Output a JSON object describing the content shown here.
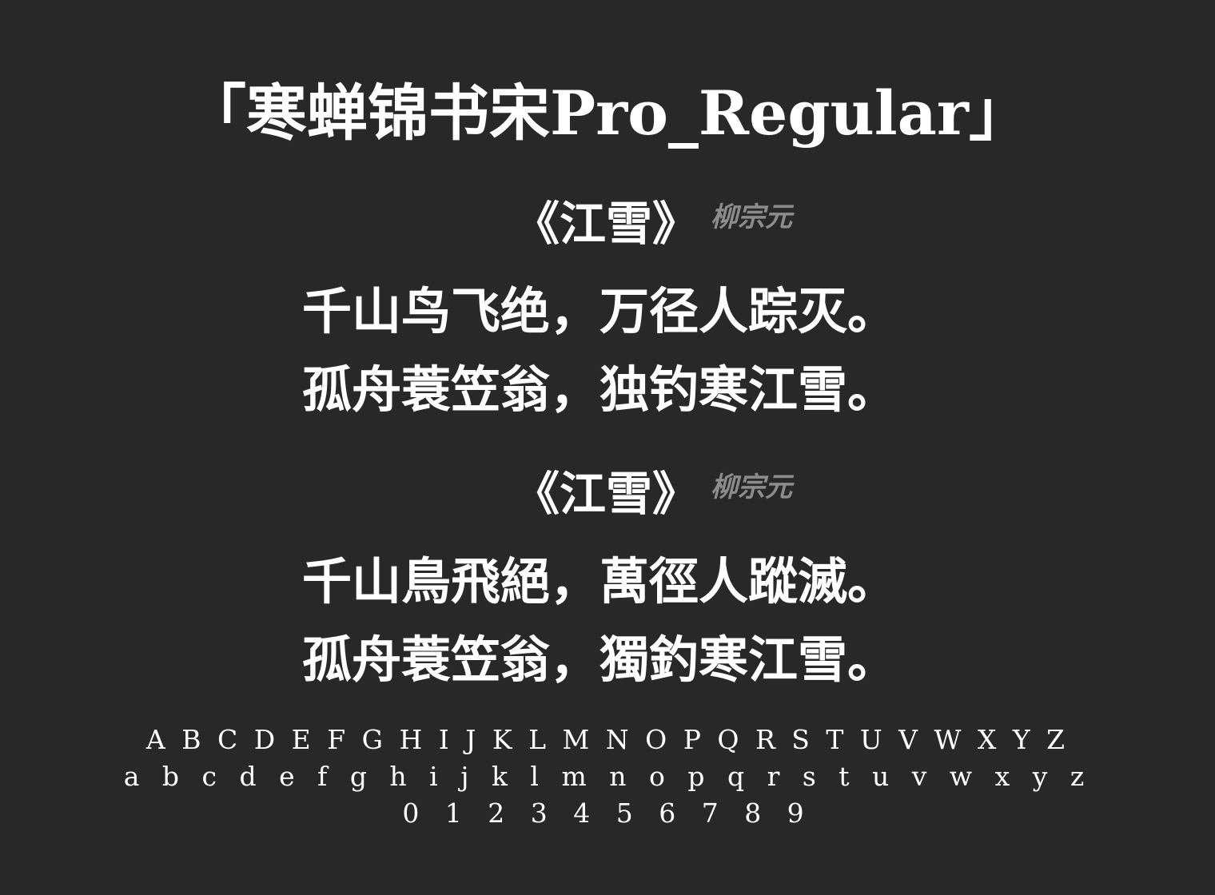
{
  "title": "「寒蝉锦书宋Pro_Regular」",
  "poems": [
    {
      "title": "《江雪》",
      "author": "柳宗元",
      "lines": [
        "千山鸟飞绝，万径人踪灭。",
        "孤舟蓑笠翁，独钓寒江雪。"
      ]
    },
    {
      "title": "《江雪》",
      "author": "柳宗元",
      "lines": [
        "千山鳥飛絕，萬徑人蹤滅。",
        "孤舟蓑笠翁，獨釣寒江雪。"
      ]
    }
  ],
  "glyphs": {
    "uppercase": "A B C D E F G H I J K L M N O P Q R S T U V W X Y Z",
    "lowercase": "a b c d e f g h i j k l m n o p q r s t u v w x y z",
    "digits": "0 1 2 3 4 5 6 7 8 9"
  },
  "colors": {
    "background": "#282828",
    "text": "#ffffff",
    "author": "#8c8c8c"
  }
}
